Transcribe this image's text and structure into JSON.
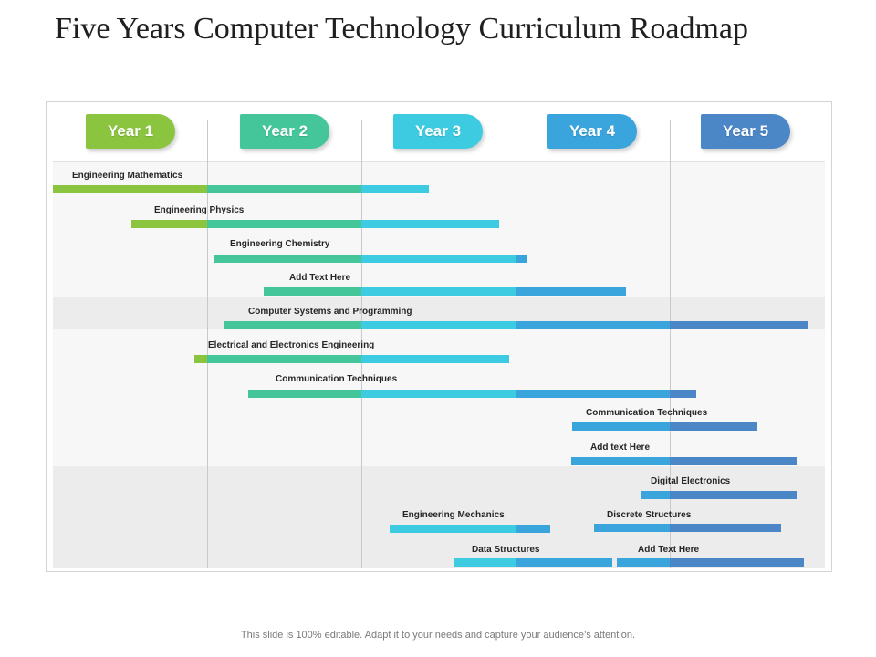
{
  "title": "Five Years Computer Technology Curriculum Roadmap",
  "years": [
    {
      "label": "Year 1",
      "color": "#8bc43f"
    },
    {
      "label": "Year 2",
      "color": "#44c69a"
    },
    {
      "label": "Year 3",
      "color": "#3ccbe0"
    },
    {
      "label": "Year 4",
      "color": "#3aa4dc"
    },
    {
      "label": "Year 5",
      "color": "#4b86c6"
    }
  ],
  "tasks": [
    {
      "label": "Engineering Mathematics"
    },
    {
      "label": "Engineering Physics"
    },
    {
      "label": "Engineering Chemistry"
    },
    {
      "label": "Add Text Here"
    },
    {
      "label": "Computer Systems and Programming"
    },
    {
      "label": "Electrical and Electronics Engineering"
    },
    {
      "label": "Communication Techniques"
    },
    {
      "label": "Communication Techniques"
    },
    {
      "label": "Add text Here"
    },
    {
      "label": "Digital Electronics"
    },
    {
      "label": "Engineering Mechanics"
    },
    {
      "label": "Discrete Structures"
    },
    {
      "label": "Data Structures"
    },
    {
      "label": "Add Text Here"
    }
  ],
  "footer": "This slide is 100% editable. Adapt it to your needs and capture your audience’s attention."
}
